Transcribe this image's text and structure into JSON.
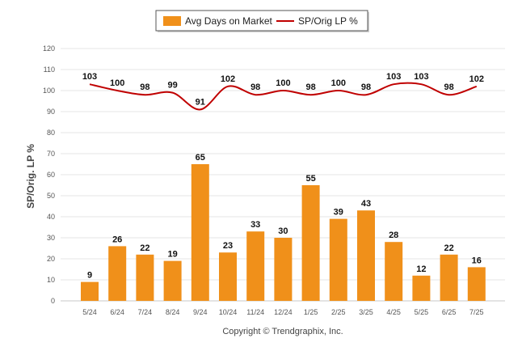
{
  "legend": {
    "bar_label": "Avg Days on Market",
    "line_label": "SP/Orig LP %"
  },
  "footer": "Copyright © Trendgraphix, Inc.",
  "colors": {
    "bar": "#F0901A",
    "line": "#C00000",
    "grid": "#E6E6E6",
    "axis": "#C8C8C8"
  },
  "chart_data": {
    "type": "bar",
    "title": "",
    "xlabel": "",
    "ylabel": "SP/Orig. LP %",
    "ylim": [
      0,
      120
    ],
    "yticks": [
      0,
      10,
      20,
      30,
      40,
      50,
      60,
      70,
      80,
      90,
      100,
      110,
      120
    ],
    "grid": true,
    "legend_position": "top-center",
    "categories": [
      "5/24",
      "6/24",
      "7/24",
      "8/24",
      "9/24",
      "10/24",
      "11/24",
      "12/24",
      "1/25",
      "2/25",
      "3/25",
      "4/25",
      "5/25",
      "6/25",
      "7/25"
    ],
    "series": [
      {
        "name": "Avg Days on Market",
        "type": "bar",
        "values": [
          9,
          26,
          22,
          19,
          65,
          23,
          33,
          30,
          55,
          39,
          43,
          28,
          12,
          22,
          16
        ]
      },
      {
        "name": "SP/Orig LP %",
        "type": "line",
        "values": [
          103,
          100,
          98,
          99,
          91,
          102,
          98,
          100,
          98,
          100,
          98,
          103,
          103,
          98,
          102
        ]
      }
    ]
  }
}
